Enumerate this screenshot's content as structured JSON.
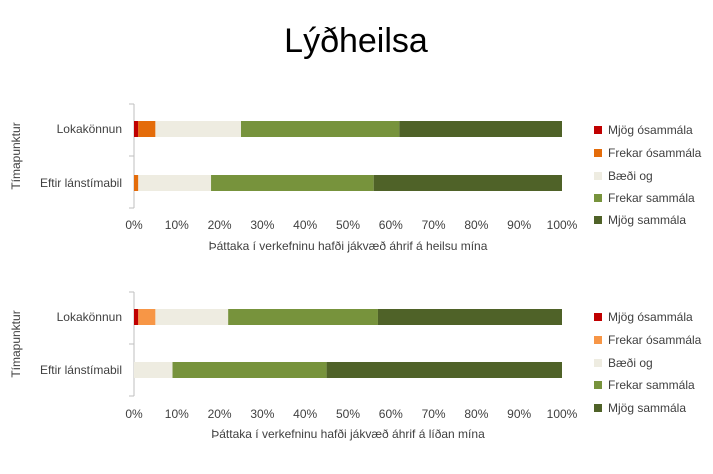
{
  "title": "Lýðheilsa",
  "legend_items": [
    "Mjög ósammála",
    "Frekar ósammála",
    "Bæði og",
    "Frekar sammála",
    "Mjög sammála"
  ],
  "chart_data": [
    {
      "type": "bar",
      "orientation": "horizontal",
      "stacked": true,
      "percent_stacked": true,
      "categories": [
        "Lokakönnun",
        "Eftir lánstímabil"
      ],
      "series": [
        {
          "name": "Mjög ósammála",
          "color": "#c00000",
          "values": [
            1,
            0
          ]
        },
        {
          "name": "Frekar ósammála",
          "color": "#e46c0a",
          "values": [
            4,
            1
          ]
        },
        {
          "name": "Bæði og",
          "color": "#eeece1",
          "values": [
            20,
            17
          ]
        },
        {
          "name": "Frekar sammála",
          "color": "#77933c",
          "values": [
            37,
            38
          ]
        },
        {
          "name": "Mjög sammála",
          "color": "#4f6228",
          "values": [
            38,
            44
          ]
        }
      ],
      "xticks": [
        "0%",
        "10%",
        "20%",
        "30%",
        "40%",
        "50%",
        "60%",
        "70%",
        "80%",
        "90%",
        "100%"
      ],
      "xlim": [
        0,
        100
      ],
      "xlabel": "Þáttaka í verkefninu hafði jákvæð áhrif á heilsu mína",
      "ylabel": "Tímapunktur",
      "legend": "right",
      "grid": false
    },
    {
      "type": "bar",
      "orientation": "horizontal",
      "stacked": true,
      "percent_stacked": true,
      "categories": [
        "Lokakönnun",
        "Eftir lánstímabil"
      ],
      "series": [
        {
          "name": "Mjög ósammála",
          "color": "#c00000",
          "values": [
            1,
            0
          ]
        },
        {
          "name": "Frekar ósammála",
          "color": "#f79646",
          "values": [
            4,
            0
          ]
        },
        {
          "name": "Bæði og",
          "color": "#eeece1",
          "values": [
            17,
            9
          ]
        },
        {
          "name": "Frekar sammála",
          "color": "#77933c",
          "values": [
            35,
            36
          ]
        },
        {
          "name": "Mjög sammála",
          "color": "#4f6228",
          "values": [
            43,
            55
          ]
        }
      ],
      "xticks": [
        "0%",
        "10%",
        "20%",
        "30%",
        "40%",
        "50%",
        "60%",
        "70%",
        "80%",
        "90%",
        "100%"
      ],
      "xlim": [
        0,
        100
      ],
      "xlabel": "Þáttaka í verkefninu hafði jákvæð áhrif á líðan mína",
      "ylabel": "Tímapunktur",
      "legend": "right",
      "grid": false
    }
  ]
}
